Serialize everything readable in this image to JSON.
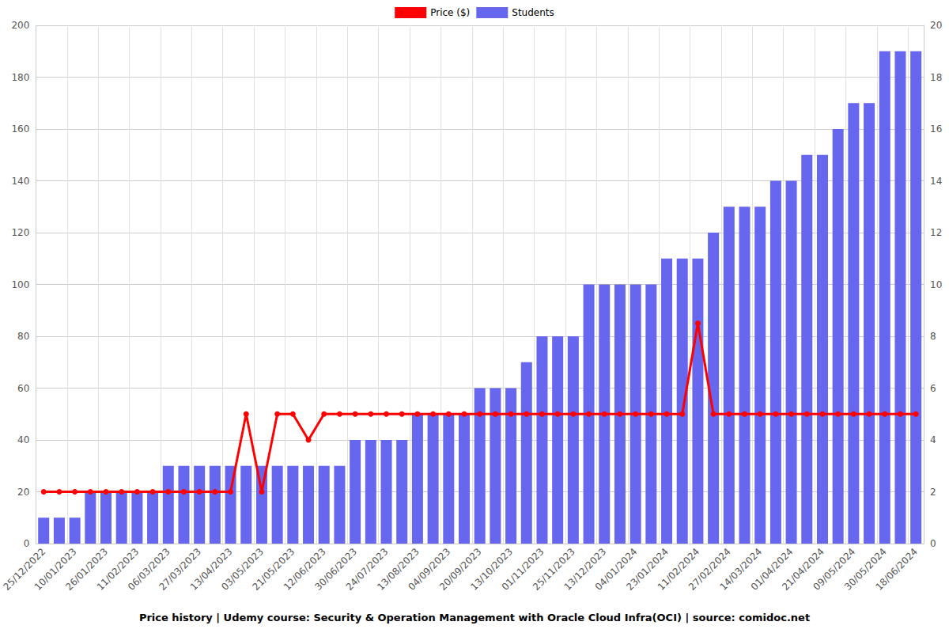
{
  "chart_data": {
    "type": "bar",
    "title": "Price history | Udemy course: Security & Operation Management with Oracle Cloud Infra(OCI) | source: comidoc.net",
    "categories": [
      "25/12/2022",
      null,
      "10/01/2023",
      null,
      "26/01/2023",
      null,
      "11/02/2023",
      null,
      "06/03/2023",
      null,
      "27/03/2023",
      null,
      "13/04/2023",
      null,
      "03/05/2023",
      null,
      "21/05/2023",
      null,
      "12/06/2023",
      null,
      "30/06/2023",
      null,
      "24/07/2023",
      null,
      "13/08/2023",
      null,
      "04/09/2023",
      null,
      "20/09/2023",
      null,
      "13/10/2023",
      null,
      "01/11/2023",
      null,
      "25/11/2023",
      null,
      "13/12/2023",
      null,
      "04/01/2024",
      null,
      "23/01/2024",
      null,
      "11/02/2024",
      null,
      "27/02/2024",
      null,
      "14/03/2024",
      null,
      "01/04/2024",
      null,
      "21/04/2024",
      null,
      "09/05/2024",
      null,
      "30/05/2024",
      null,
      "18/06/2024"
    ],
    "series": [
      {
        "name": "Price ($)",
        "type": "line",
        "color": "#ff0000",
        "marker": "circle",
        "values": [
          20,
          20,
          20,
          20,
          20,
          20,
          20,
          20,
          20,
          20,
          20,
          20,
          20,
          50,
          20,
          50,
          50,
          40,
          50,
          50,
          50,
          50,
          50,
          50,
          50,
          50,
          50,
          50,
          50,
          50,
          50,
          50,
          50,
          50,
          50,
          50,
          50,
          50,
          50,
          50,
          50,
          50,
          85,
          50,
          50,
          50,
          50,
          50,
          50,
          50,
          50,
          50,
          50,
          50,
          50,
          50,
          50
        ]
      },
      {
        "name": "Students",
        "type": "bar",
        "color": "#6666ee",
        "axis": "y2",
        "values": [
          1,
          1,
          1,
          2,
          2,
          2,
          2,
          2,
          3,
          3,
          3,
          3,
          3,
          3,
          3,
          3,
          3,
          3,
          3,
          3,
          4,
          4,
          4,
          4,
          5,
          5,
          5,
          5,
          6,
          6,
          6,
          7,
          8,
          8,
          8,
          10,
          10,
          10,
          10,
          10,
          11,
          11,
          11,
          12,
          13,
          13,
          13,
          14,
          14,
          15,
          15,
          16,
          17,
          17,
          19,
          19,
          19
        ]
      }
    ],
    "ylim": [
      0,
      200
    ],
    "yticks": [
      0,
      20,
      40,
      60,
      80,
      100,
      120,
      140,
      160,
      180,
      200
    ],
    "y2lim": [
      0,
      20
    ],
    "y2ticks": [
      0,
      2,
      4,
      6,
      8,
      10,
      12,
      14,
      16,
      18,
      20
    ],
    "grid": true,
    "legend": "top"
  }
}
